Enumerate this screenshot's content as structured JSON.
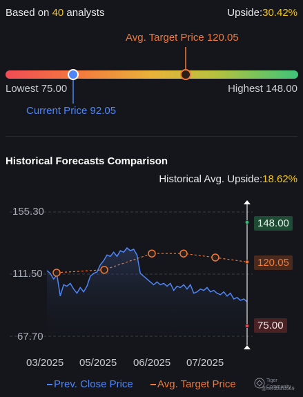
{
  "header": {
    "analysts_prefix": "Based on ",
    "analysts_count": "40",
    "analysts_suffix": " analysts",
    "upside_label": "Upside:",
    "upside_value": "30.42%"
  },
  "target_range": {
    "avg_target_label": "Avg. Target Price 120.05",
    "lowest_label": "Lowest 75.00",
    "highest_label": "Highest 148.00",
    "current_label": "Current Price 92.05",
    "lowest": 75.0,
    "highest": 148.0,
    "current": 92.05,
    "avg_target": 120.05
  },
  "section": {
    "title": "Historical Forecasts Comparison",
    "hist_upside_label": "Historical Avg. Upside:",
    "hist_upside_value": "18.62%"
  },
  "badges": {
    "high": "148.00",
    "avg": "120.05",
    "low": "75.00"
  },
  "legend": {
    "close": "Prev. Close Price",
    "target": "Avg. Target Price"
  },
  "watermark": {
    "brand": "Tiger Community",
    "user": "@nerdbull1669"
  },
  "colors": {
    "accent_yellow": "#f5c518",
    "close_line": "#4f86f7",
    "target_line": "#f07a3a",
    "high_badge": "#1d4b33",
    "avg_badge": "#4a2a1d",
    "low_badge": "#4a2224"
  },
  "chart_data": {
    "type": "line",
    "yticks": [
      "155.30",
      "111.50",
      "67.70"
    ],
    "ylim": [
      67.7,
      155.3
    ],
    "xticks": [
      "03/2025",
      "05/2025",
      "06/2025",
      "07/2025"
    ],
    "grid": true,
    "legend_position": "bottom",
    "series": [
      {
        "name": "Prev. Close Price",
        "values": [
          114,
          112,
          108,
          111,
          96,
          104,
          103,
          105,
          101,
          98,
          102,
          99,
          103,
          110,
          112,
          113,
          118,
          121,
          125,
          124,
          127,
          124,
          128,
          127,
          130,
          128,
          129,
          125,
          112,
          110,
          108,
          106,
          104,
          106,
          104,
          105,
          103,
          105,
          100,
          103,
          102,
          104,
          101,
          104,
          98,
          99,
          101,
          100,
          102,
          99,
          100,
          98,
          97,
          99,
          96,
          98,
          94,
          95,
          93,
          94,
          92
        ],
        "style": "solid"
      },
      {
        "name": "Avg. Target Price",
        "values": [
          112.5,
          114.5,
          126.0,
          126.0,
          123.2,
          120.05
        ],
        "markers": [
          0,
          3,
          6,
          8,
          10,
          12
        ],
        "style": "dashed"
      }
    ],
    "forecast_range": {
      "high": 148.0,
      "avg": 120.05,
      "low": 75.0
    }
  }
}
